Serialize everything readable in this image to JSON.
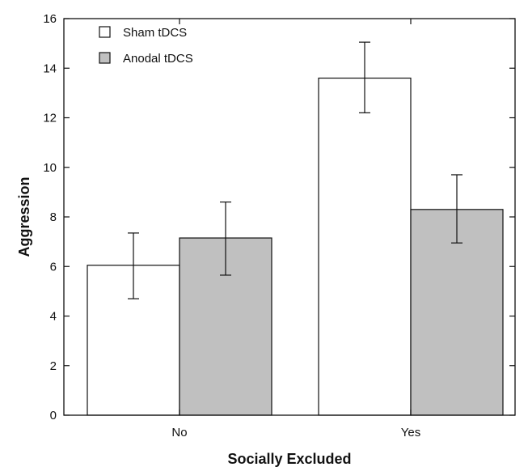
{
  "chart_data": {
    "type": "bar",
    "title": "",
    "xlabel": "Socially Excluded",
    "ylabel": "Aggression",
    "categories": [
      "No",
      "Yes"
    ],
    "ylim": [
      0,
      16
    ],
    "yticks": [
      0,
      2,
      4,
      6,
      8,
      10,
      12,
      14,
      16
    ],
    "grid": false,
    "legend_position": "top-left",
    "error_bars": true,
    "series": [
      {
        "name": "Sham tDCS",
        "color": "#ffffff",
        "values": [
          6.05,
          13.6
        ],
        "error_low": [
          4.7,
          12.2
        ],
        "error_high": [
          7.35,
          15.05
        ]
      },
      {
        "name": "Anodal tDCS",
        "color": "#c0c0c0",
        "values": [
          7.15,
          8.3
        ],
        "error_low": [
          5.65,
          6.95
        ],
        "error_high": [
          8.6,
          9.7
        ]
      }
    ]
  }
}
